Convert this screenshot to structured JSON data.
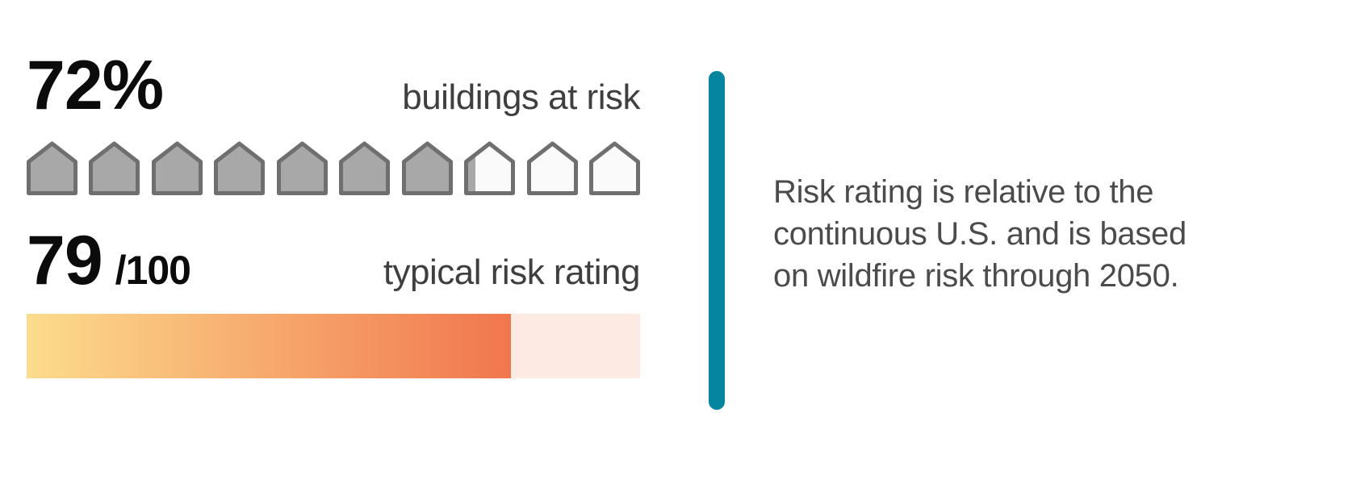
{
  "colors": {
    "number_text": "#0b0b0b",
    "label_text": "#3f3f3f",
    "note_text": "#4b4b4b",
    "house_filled": "#a8a8a8",
    "house_empty": "#fafafa",
    "house_stroke": "#6f6f6f",
    "bar_gradient_start": "#fcdc8d",
    "bar_gradient_end": "#f1764e",
    "bar_track": "#fdeae3",
    "divider_teal": "#06869e"
  },
  "buildings": {
    "percent": 72,
    "percent_label": "72%",
    "label": "buildings at risk",
    "icon_count": 10
  },
  "rating": {
    "value": 79,
    "max": 100,
    "value_label": "79",
    "max_label": "/100",
    "label": "typical risk rating"
  },
  "note": {
    "lines": [
      "Risk rating is relative to the",
      "continuous U.S. and is based",
      "on wildfire risk through 2050."
    ]
  },
  "chart_data": [
    {
      "type": "bar",
      "subtype": "pictograph",
      "title": "buildings at risk",
      "categories": [
        "buildings at risk"
      ],
      "values": [
        72
      ],
      "unit": "%",
      "icon": "house",
      "icon_count": 10,
      "icons_filled": 7.2,
      "filled_color": "#a8a8a8",
      "empty_color": "#fafafa"
    },
    {
      "type": "bar",
      "subtype": "progress",
      "title": "typical risk rating",
      "categories": [
        "typical risk rating"
      ],
      "values": [
        79
      ],
      "xlim": [
        0,
        100
      ],
      "fill_gradient": [
        "#fcdc8d",
        "#f1764e"
      ],
      "track_color": "#fdeae3"
    }
  ]
}
